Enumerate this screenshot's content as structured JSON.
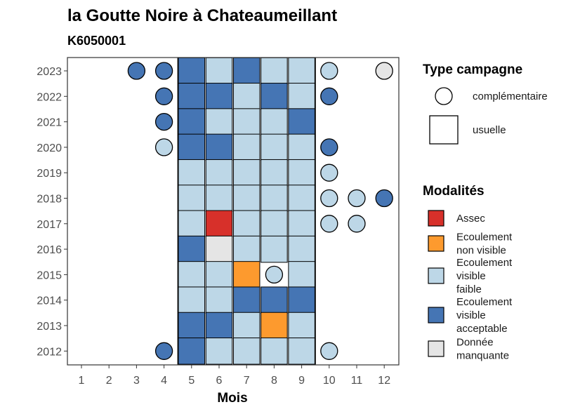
{
  "chart_data": {
    "type": "heatmap",
    "title": "la Goutte Noire à Chateaumeillant",
    "subtitle": "K6050001",
    "xlabel": "Mois",
    "ylabel": "",
    "x_categories": [
      "1",
      "2",
      "3",
      "4",
      "5",
      "6",
      "7",
      "8",
      "9",
      "10",
      "11",
      "12"
    ],
    "y_categories": [
      "2012",
      "2013",
      "2014",
      "2015",
      "2016",
      "2017",
      "2018",
      "2019",
      "2020",
      "2021",
      "2022",
      "2023"
    ],
    "usuelle_band": [
      5,
      9
    ],
    "colors": {
      "assec": "#d7302a",
      "ecoulement_non_visible": "#fd9a2e",
      "ecoulement_visible_faible": "#bdd7e7",
      "ecoulement_visible_acceptable": "#4575b4",
      "donnee_manquante": "#e5e5e5"
    },
    "observations": [
      {
        "year": "2023",
        "month": 3,
        "type": "complementaire",
        "modalite": "ecoulement_visible_acceptable"
      },
      {
        "year": "2023",
        "month": 4,
        "type": "complementaire",
        "modalite": "ecoulement_visible_acceptable"
      },
      {
        "year": "2023",
        "month": 5,
        "type": "usuelle",
        "modalite": "ecoulement_visible_acceptable"
      },
      {
        "year": "2023",
        "month": 6,
        "type": "usuelle",
        "modalite": "ecoulement_visible_faible"
      },
      {
        "year": "2023",
        "month": 7,
        "type": "usuelle",
        "modalite": "ecoulement_visible_acceptable"
      },
      {
        "year": "2023",
        "month": 8,
        "type": "usuelle",
        "modalite": "ecoulement_visible_faible"
      },
      {
        "year": "2023",
        "month": 9,
        "type": "usuelle",
        "modalite": "ecoulement_visible_faible"
      },
      {
        "year": "2023",
        "month": 10,
        "type": "complementaire",
        "modalite": "ecoulement_visible_faible"
      },
      {
        "year": "2023",
        "month": 12,
        "type": "complementaire",
        "modalite": "donnee_manquante"
      },
      {
        "year": "2022",
        "month": 4,
        "type": "complementaire",
        "modalite": "ecoulement_visible_acceptable"
      },
      {
        "year": "2022",
        "month": 5,
        "type": "usuelle",
        "modalite": "ecoulement_visible_acceptable"
      },
      {
        "year": "2022",
        "month": 6,
        "type": "usuelle",
        "modalite": "ecoulement_visible_acceptable"
      },
      {
        "year": "2022",
        "month": 7,
        "type": "usuelle",
        "modalite": "ecoulement_visible_faible"
      },
      {
        "year": "2022",
        "month": 8,
        "type": "usuelle",
        "modalite": "ecoulement_visible_acceptable"
      },
      {
        "year": "2022",
        "month": 9,
        "type": "usuelle",
        "modalite": "ecoulement_visible_faible"
      },
      {
        "year": "2022",
        "month": 10,
        "type": "complementaire",
        "modalite": "ecoulement_visible_acceptable"
      },
      {
        "year": "2021",
        "month": 4,
        "type": "complementaire",
        "modalite": "ecoulement_visible_acceptable"
      },
      {
        "year": "2021",
        "month": 5,
        "type": "usuelle",
        "modalite": "ecoulement_visible_acceptable"
      },
      {
        "year": "2021",
        "month": 6,
        "type": "usuelle",
        "modalite": "ecoulement_visible_faible"
      },
      {
        "year": "2021",
        "month": 7,
        "type": "usuelle",
        "modalite": "ecoulement_visible_faible"
      },
      {
        "year": "2021",
        "month": 8,
        "type": "usuelle",
        "modalite": "ecoulement_visible_faible"
      },
      {
        "year": "2021",
        "month": 9,
        "type": "usuelle",
        "modalite": "ecoulement_visible_acceptable"
      },
      {
        "year": "2020",
        "month": 4,
        "type": "complementaire",
        "modalite": "ecoulement_visible_faible"
      },
      {
        "year": "2020",
        "month": 5,
        "type": "usuelle",
        "modalite": "ecoulement_visible_acceptable"
      },
      {
        "year": "2020",
        "month": 6,
        "type": "usuelle",
        "modalite": "ecoulement_visible_acceptable"
      },
      {
        "year": "2020",
        "month": 7,
        "type": "usuelle",
        "modalite": "ecoulement_visible_faible"
      },
      {
        "year": "2020",
        "month": 8,
        "type": "usuelle",
        "modalite": "ecoulement_visible_faible"
      },
      {
        "year": "2020",
        "month": 9,
        "type": "usuelle",
        "modalite": "ecoulement_visible_faible"
      },
      {
        "year": "2020",
        "month": 10,
        "type": "complementaire",
        "modalite": "ecoulement_visible_acceptable"
      },
      {
        "year": "2019",
        "month": 5,
        "type": "usuelle",
        "modalite": "ecoulement_visible_faible"
      },
      {
        "year": "2019",
        "month": 6,
        "type": "usuelle",
        "modalite": "ecoulement_visible_faible"
      },
      {
        "year": "2019",
        "month": 7,
        "type": "usuelle",
        "modalite": "ecoulement_visible_faible"
      },
      {
        "year": "2019",
        "month": 8,
        "type": "usuelle",
        "modalite": "ecoulement_visible_faible"
      },
      {
        "year": "2019",
        "month": 9,
        "type": "usuelle",
        "modalite": "ecoulement_visible_faible"
      },
      {
        "year": "2019",
        "month": 10,
        "type": "complementaire",
        "modalite": "ecoulement_visible_faible"
      },
      {
        "year": "2018",
        "month": 5,
        "type": "usuelle",
        "modalite": "ecoulement_visible_faible"
      },
      {
        "year": "2018",
        "month": 6,
        "type": "usuelle",
        "modalite": "ecoulement_visible_faible"
      },
      {
        "year": "2018",
        "month": 7,
        "type": "usuelle",
        "modalite": "ecoulement_visible_faible"
      },
      {
        "year": "2018",
        "month": 8,
        "type": "usuelle",
        "modalite": "ecoulement_visible_faible"
      },
      {
        "year": "2018",
        "month": 9,
        "type": "usuelle",
        "modalite": "ecoulement_visible_faible"
      },
      {
        "year": "2018",
        "month": 10,
        "type": "complementaire",
        "modalite": "ecoulement_visible_faible"
      },
      {
        "year": "2018",
        "month": 11,
        "type": "complementaire",
        "modalite": "ecoulement_visible_faible"
      },
      {
        "year": "2018",
        "month": 12,
        "type": "complementaire",
        "modalite": "ecoulement_visible_acceptable"
      },
      {
        "year": "2017",
        "month": 5,
        "type": "usuelle",
        "modalite": "ecoulement_visible_faible"
      },
      {
        "year": "2017",
        "month": 6,
        "type": "usuelle",
        "modalite": "assec"
      },
      {
        "year": "2017",
        "month": 7,
        "type": "usuelle",
        "modalite": "ecoulement_visible_faible"
      },
      {
        "year": "2017",
        "month": 8,
        "type": "usuelle",
        "modalite": "ecoulement_visible_faible"
      },
      {
        "year": "2017",
        "month": 9,
        "type": "usuelle",
        "modalite": "ecoulement_visible_faible"
      },
      {
        "year": "2017",
        "month": 10,
        "type": "complementaire",
        "modalite": "ecoulement_visible_faible"
      },
      {
        "year": "2017",
        "month": 11,
        "type": "complementaire",
        "modalite": "ecoulement_visible_faible"
      },
      {
        "year": "2016",
        "month": 5,
        "type": "usuelle",
        "modalite": "ecoulement_visible_acceptable"
      },
      {
        "year": "2016",
        "month": 6,
        "type": "usuelle",
        "modalite": "donnee_manquante"
      },
      {
        "year": "2016",
        "month": 7,
        "type": "usuelle",
        "modalite": "ecoulement_visible_faible"
      },
      {
        "year": "2016",
        "month": 8,
        "type": "usuelle",
        "modalite": "ecoulement_visible_faible"
      },
      {
        "year": "2016",
        "month": 9,
        "type": "usuelle",
        "modalite": "ecoulement_visible_faible"
      },
      {
        "year": "2015",
        "month": 5,
        "type": "usuelle",
        "modalite": "ecoulement_visible_faible"
      },
      {
        "year": "2015",
        "month": 6,
        "type": "usuelle",
        "modalite": "ecoulement_visible_faible"
      },
      {
        "year": "2015",
        "month": 7,
        "type": "usuelle",
        "modalite": "ecoulement_non_visible"
      },
      {
        "year": "2015",
        "month": 8,
        "type": "complementaire",
        "modalite": "ecoulement_visible_faible"
      },
      {
        "year": "2015",
        "month": 9,
        "type": "usuelle",
        "modalite": "ecoulement_visible_faible"
      },
      {
        "year": "2014",
        "month": 5,
        "type": "usuelle",
        "modalite": "ecoulement_visible_faible"
      },
      {
        "year": "2014",
        "month": 6,
        "type": "usuelle",
        "modalite": "ecoulement_visible_faible"
      },
      {
        "year": "2014",
        "month": 7,
        "type": "usuelle",
        "modalite": "ecoulement_visible_acceptable"
      },
      {
        "year": "2014",
        "month": 8,
        "type": "usuelle",
        "modalite": "ecoulement_visible_acceptable"
      },
      {
        "year": "2014",
        "month": 9,
        "type": "usuelle",
        "modalite": "ecoulement_visible_acceptable"
      },
      {
        "year": "2013",
        "month": 5,
        "type": "usuelle",
        "modalite": "ecoulement_visible_acceptable"
      },
      {
        "year": "2013",
        "month": 6,
        "type": "usuelle",
        "modalite": "ecoulement_visible_acceptable"
      },
      {
        "year": "2013",
        "month": 7,
        "type": "usuelle",
        "modalite": "ecoulement_visible_faible"
      },
      {
        "year": "2013",
        "month": 8,
        "type": "usuelle",
        "modalite": "ecoulement_non_visible"
      },
      {
        "year": "2013",
        "month": 9,
        "type": "usuelle",
        "modalite": "ecoulement_visible_faible"
      },
      {
        "year": "2012",
        "month": 4,
        "type": "complementaire",
        "modalite": "ecoulement_visible_acceptable"
      },
      {
        "year": "2012",
        "month": 5,
        "type": "usuelle",
        "modalite": "ecoulement_visible_acceptable"
      },
      {
        "year": "2012",
        "month": 6,
        "type": "usuelle",
        "modalite": "ecoulement_visible_faible"
      },
      {
        "year": "2012",
        "month": 7,
        "type": "usuelle",
        "modalite": "ecoulement_visible_faible"
      },
      {
        "year": "2012",
        "month": 8,
        "type": "usuelle",
        "modalite": "ecoulement_visible_faible"
      },
      {
        "year": "2012",
        "month": 9,
        "type": "usuelle",
        "modalite": "ecoulement_visible_faible"
      },
      {
        "year": "2012",
        "month": 10,
        "type": "complementaire",
        "modalite": "ecoulement_visible_faible"
      }
    ],
    "legend_type": {
      "title": "Type campagne",
      "items": [
        {
          "key": "complementaire",
          "label": "complémentaire"
        },
        {
          "key": "usuelle",
          "label": "usuelle"
        }
      ]
    },
    "legend_modalite": {
      "title": "Modalités",
      "items": [
        {
          "key": "assec",
          "lines": [
            "Assec"
          ]
        },
        {
          "key": "ecoulement_non_visible",
          "lines": [
            "Ecoulement",
            "non visible"
          ]
        },
        {
          "key": "ecoulement_visible_faible",
          "lines": [
            "Ecoulement",
            "visible",
            "faible"
          ]
        },
        {
          "key": "ecoulement_visible_acceptable",
          "lines": [
            "Ecoulement",
            "visible",
            "acceptable"
          ]
        },
        {
          "key": "donnee_manquante",
          "lines": [
            "Donnée",
            "manquante"
          ]
        }
      ]
    }
  }
}
